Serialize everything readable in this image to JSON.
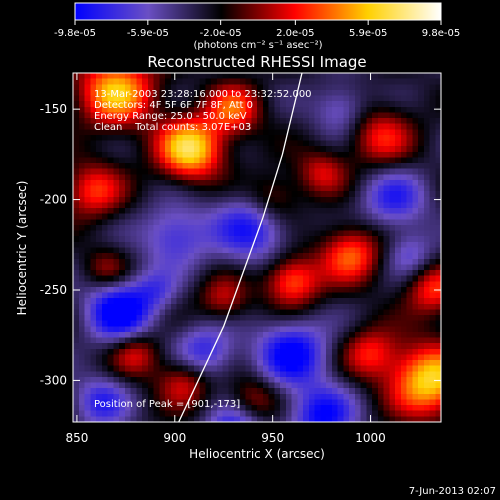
{
  "colorbar": {
    "tick_labels": [
      "-9.8e-05",
      "-5.9e-05",
      "-2.0e-05",
      "2.0e-05",
      "5.9e-05",
      "9.8e-05"
    ],
    "tick_values": [
      -9.8e-05,
      -5.9e-05,
      -2e-05,
      2e-05,
      5.9e-05,
      9.8e-05
    ],
    "range": [
      -9.8e-05,
      9.8e-05
    ],
    "units_label": "(photons cm⁻² s⁻¹ asec⁻²)"
  },
  "chart_data": {
    "type": "heatmap",
    "title": "Reconstructed RHESSI Image",
    "xlabel": "Heliocentric X (arcsec)",
    "ylabel": "Heliocentric Y (arcsec)",
    "xlim": [
      848,
      1036
    ],
    "ylim": [
      -323,
      -130
    ],
    "x_ticks": [
      850,
      900,
      950,
      1000
    ],
    "x_tick_labels": [
      "850",
      "900",
      "950",
      "1000"
    ],
    "y_ticks": [
      -150,
      -200,
      -250,
      -300
    ],
    "y_tick_labels": [
      "-150",
      "-200",
      "-250",
      "-300"
    ],
    "colormap": [
      "#0000ff",
      "#6a4fc4",
      "#000000",
      "#ff0000",
      "#ffd000",
      "#ffffff"
    ],
    "peak": [
      901,
      -173
    ],
    "limb_curve": [
      [
        965,
        -130
      ],
      [
        955,
        -175
      ],
      [
        945,
        -210
      ],
      [
        935,
        -240
      ],
      [
        925,
        -270
      ],
      [
        912,
        -300
      ],
      [
        902,
        -323
      ]
    ],
    "blobs": [
      {
        "x": 908,
        "y": -172,
        "a": 9.8e-05,
        "s": 12
      },
      {
        "x": 870,
        "y": -140,
        "a": 8.5e-05,
        "s": 14
      },
      {
        "x": 858,
        "y": -195,
        "a": 5.5e-05,
        "s": 11
      },
      {
        "x": 930,
        "y": -150,
        "a": 6e-05,
        "s": 10
      },
      {
        "x": 1005,
        "y": -165,
        "a": 5e-05,
        "s": 12
      },
      {
        "x": 975,
        "y": -185,
        "a": 4.2e-05,
        "s": 9
      },
      {
        "x": 1030,
        "y": -300,
        "a": 9.5e-05,
        "s": 14
      },
      {
        "x": 1032,
        "y": -250,
        "a": 5.5e-05,
        "s": 10
      },
      {
        "x": 990,
        "y": -230,
        "a": 6.5e-05,
        "s": 11
      },
      {
        "x": 960,
        "y": -245,
        "a": 7e-05,
        "s": 10
      },
      {
        "x": 925,
        "y": -255,
        "a": 4e-05,
        "s": 9
      },
      {
        "x": 905,
        "y": -300,
        "a": 5e-05,
        "s": 10
      },
      {
        "x": 880,
        "y": -285,
        "a": 4.5e-05,
        "s": 9
      },
      {
        "x": 1000,
        "y": -285,
        "a": 5e-05,
        "s": 10
      },
      {
        "x": 950,
        "y": -200,
        "a": 4.5e-05,
        "s": 10
      },
      {
        "x": 865,
        "y": -238,
        "a": 3e-05,
        "s": 8
      },
      {
        "x": 940,
        "y": -310,
        "a": 3.5e-05,
        "s": 9
      },
      {
        "x": 872,
        "y": -262,
        "a": -8e-05,
        "s": 12
      },
      {
        "x": 940,
        "y": -215,
        "a": -6e-05,
        "s": 14
      },
      {
        "x": 960,
        "y": -285,
        "a": -7e-05,
        "s": 13
      },
      {
        "x": 900,
        "y": -220,
        "a": -5e-05,
        "s": 12
      },
      {
        "x": 915,
        "y": -285,
        "a": -5.5e-05,
        "s": 11
      },
      {
        "x": 1012,
        "y": -200,
        "a": -5e-05,
        "s": 12
      },
      {
        "x": 975,
        "y": -320,
        "a": -6.5e-05,
        "s": 12
      },
      {
        "x": 930,
        "y": -330,
        "a": -6.5e-05,
        "s": 10
      },
      {
        "x": 985,
        "y": -150,
        "a": -4e-05,
        "s": 10
      },
      {
        "x": 862,
        "y": -312,
        "a": -5e-05,
        "s": 10
      },
      {
        "x": 1020,
        "y": -230,
        "a": -3.5e-05,
        "s": 9
      },
      {
        "x": 890,
        "y": -250,
        "a": -3e-05,
        "s": 8
      }
    ]
  },
  "annotations": {
    "time_range": "13-Mar-2003 23:28:16.000 to 23:32:52.000",
    "detectors": "Detectors: 4F 5F 6F 7F 8F, Att 0",
    "energy_range": "Energy Range: 25.0 - 50.0 keV",
    "method": "Clean    Total counts: 3.07E+03",
    "peak_position": "Position of Peak = [901,-173]"
  },
  "footer": {
    "timestamp": "7-Jun-2013 02:07"
  }
}
